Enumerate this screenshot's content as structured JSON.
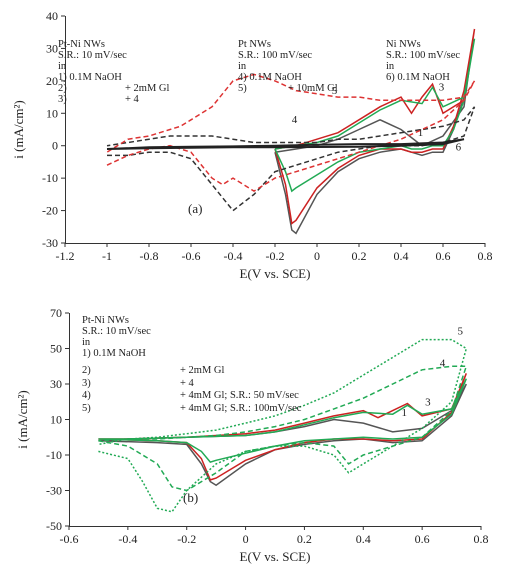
{
  "chart_data": [
    {
      "type": "line",
      "panel_label": "(a)",
      "xlabel": "E(V vs. SCE)",
      "ylabel": "i (mA/cm²)",
      "xlim": [
        -1.2,
        0.8
      ],
      "ylim": [
        -30,
        40
      ],
      "xticks": [
        "-1.2",
        "-1",
        "-0.8",
        "-0.6",
        "-0.4",
        "-0.2",
        "0",
        "0.2",
        "0.4",
        "0.6",
        "0.8"
      ],
      "yticks": [
        "40",
        "30",
        "20",
        "10",
        "0",
        "-10",
        "-20",
        "-30"
      ],
      "grid": false,
      "annotations": {
        "col1": [
          "Pt-Ni NWs",
          "S.R.: 10 mV/sec",
          "in",
          "1) 0.1M NaOH",
          "2)",
          "+ 2mM Gl",
          "3)",
          "+ 4"
        ],
        "col2": [
          "Pt NWs",
          "S.R.: 100 mV/sec",
          "in",
          "4) 0.1M NaOH",
          "5)",
          "+ 10mM Gl"
        ],
        "col3": [
          "Ni NWs",
          "S.R.: 100 mV/sec",
          "in",
          "6) 0.1M NaOH"
        ]
      },
      "series": [
        {
          "label": "1",
          "color": "#555555",
          "dash": "solid",
          "x": [
            -0.2,
            -0.15,
            -0.12,
            -0.1,
            0,
            0.1,
            0.2,
            0.3,
            0.4,
            0.45,
            0.5,
            0.55,
            0.6,
            0.65,
            0.7,
            0.74,
            0.7,
            0.6,
            0.5,
            0.4,
            0.3,
            0.2,
            0.1,
            0.0,
            -0.1,
            -0.15,
            -0.2
          ],
          "y": [
            -2,
            -15,
            -26,
            -27,
            -15,
            -8,
            -4,
            -2,
            -1,
            -2,
            -3,
            -2,
            -2,
            5,
            15,
            31,
            12,
            3,
            0,
            5,
            8,
            5,
            2,
            0,
            -1,
            -1.5,
            -2
          ]
        },
        {
          "label": "2",
          "color": "#cc2222",
          "dash": "solid",
          "x": [
            -0.2,
            -0.15,
            -0.12,
            -0.1,
            0,
            0.1,
            0.2,
            0.3,
            0.4,
            0.45,
            0.5,
            0.55,
            0.6,
            0.65,
            0.7,
            0.75,
            0.7,
            0.6,
            0.55,
            0.5,
            0.45,
            0.4,
            0.3,
            0.2,
            0.1,
            0.0,
            -0.1,
            -0.15,
            -0.2
          ],
          "y": [
            -1,
            -12,
            -24,
            -23,
            -13,
            -7,
            -3,
            -1,
            -1,
            -2,
            -2,
            -1,
            -1,
            6,
            17,
            36,
            14,
            10,
            19,
            15,
            10,
            15,
            12,
            8,
            4,
            2,
            0,
            -0.5,
            -1
          ]
        },
        {
          "label": "3",
          "color": "#22aa55",
          "dash": "solid",
          "x": [
            -0.2,
            -0.15,
            -0.12,
            -0.1,
            0,
            0.1,
            0.2,
            0.3,
            0.4,
            0.45,
            0.5,
            0.55,
            0.6,
            0.65,
            0.7,
            0.75,
            0.7,
            0.6,
            0.55,
            0.5,
            0.4,
            0.3,
            0.2,
            0.1,
            0.0,
            -0.1,
            -0.15,
            -0.2
          ],
          "y": [
            -1,
            -8,
            -14,
            -13,
            -9,
            -5,
            -2,
            -1,
            0,
            -1,
            -1,
            0,
            0,
            5,
            14,
            33,
            15,
            12,
            18,
            13,
            14,
            11,
            7,
            3,
            1,
            0,
            -0.5,
            -1
          ]
        },
        {
          "label": "4",
          "color": "#333333",
          "dash": "dashed",
          "x": [
            -1.0,
            -0.9,
            -0.8,
            -0.7,
            -0.6,
            -0.5,
            -0.4,
            -0.3,
            -0.2,
            -0.1,
            0.0,
            0.1,
            0.2,
            0.3,
            0.4,
            0.5,
            0.6,
            0.7,
            0.75,
            0.7,
            0.6,
            0.5,
            0.4,
            0.3,
            0.2,
            0.1,
            0.0,
            -0.1,
            -0.2,
            -0.3,
            -0.4,
            -0.5,
            -0.6,
            -0.7,
            -0.8,
            -0.9,
            -1.0
          ],
          "y": [
            -3,
            -3,
            -2,
            -2,
            -4,
            -12,
            -20,
            -15,
            -8,
            -6,
            -4,
            -2,
            -1,
            0,
            0,
            0,
            1,
            3,
            12,
            8,
            6,
            5,
            4,
            3,
            2,
            2,
            1,
            1,
            1,
            1,
            2,
            3,
            3,
            3,
            2,
            1,
            0
          ]
        },
        {
          "label": "5",
          "color": "#dd3333",
          "dash": "dashed",
          "x": [
            -1.0,
            -0.9,
            -0.8,
            -0.7,
            -0.6,
            -0.5,
            -0.45,
            -0.4,
            -0.3,
            -0.2,
            -0.1,
            0.0,
            0.1,
            0.2,
            0.3,
            0.4,
            0.5,
            0.6,
            0.7,
            0.75,
            0.7,
            0.6,
            0.5,
            0.45,
            0.4,
            0.3,
            0.2,
            0.1,
            0.0,
            -0.1,
            -0.2,
            -0.3,
            -0.4,
            -0.5,
            -0.6,
            -0.65,
            -0.7,
            -0.8,
            -0.9,
            -1.0
          ],
          "y": [
            -6,
            -3,
            -1,
            0,
            -2,
            -10,
            -12,
            -10,
            -14,
            -10,
            -8,
            -6,
            -4,
            -2,
            0,
            2,
            5,
            8,
            14,
            20,
            15,
            14,
            14,
            14,
            14,
            14,
            15,
            15,
            16,
            17,
            20,
            22,
            20,
            12,
            8,
            6,
            5,
            3,
            2,
            -2
          ]
        },
        {
          "label": "6",
          "color": "#222222",
          "dash": "solid",
          "x": [
            -1.0,
            -0.8,
            -0.6,
            -0.4,
            -0.2,
            0.0,
            0.2,
            0.4,
            0.6,
            0.7,
            0.6,
            0.4,
            0.2,
            0.0,
            -0.2,
            -0.4,
            -0.6,
            -0.8,
            -1.0
          ],
          "y": [
            -1,
            -0.8,
            -0.6,
            -0.5,
            -0.5,
            -0.4,
            -0.3,
            0,
            0.5,
            2,
            1,
            0.5,
            0.5,
            0.3,
            0,
            -0.2,
            -0.3,
            -0.5,
            -1
          ]
        }
      ],
      "curve_labels": [
        {
          "text": "1",
          "x": 0.48,
          "y": 3
        },
        {
          "text": "3",
          "x": 0.58,
          "y": 17
        },
        {
          "text": "5",
          "x": 0.07,
          "y": 16
        },
        {
          "text": "4",
          "x": -0.12,
          "y": 7
        },
        {
          "text": "6",
          "x": 0.66,
          "y": -1.5
        }
      ]
    },
    {
      "type": "line",
      "panel_label": "(b)",
      "xlabel": "E(V vs. SCE)",
      "ylabel": "i (mA/cm²)",
      "xlim": [
        -0.6,
        0.8
      ],
      "ylim": [
        -50,
        70
      ],
      "xticks": [
        "-0.6",
        "-0.4",
        "-0.2",
        "0",
        "0.2",
        "0.4",
        "0.6",
        "0.8"
      ],
      "yticks": [
        "70",
        "50",
        "30",
        "10",
        "-10",
        "-30",
        "-50"
      ],
      "grid": false,
      "annotations": {
        "col1": [
          "Pt-Ni NWs",
          "S.R.: 10 mV/sec",
          "in",
          "1) 0.1M NaOH",
          "2)",
          "+ 2mM Gl",
          "3)",
          "+ 4",
          "4)",
          "+ 4mM Gl; S.R.: 50 mV/sec",
          "5)",
          "+ 4mM Gl; S.R.: 100mV/sec"
        ]
      },
      "series": [
        {
          "label": "1",
          "color": "#555555",
          "dash": "solid",
          "x": [
            -0.5,
            -0.3,
            -0.2,
            -0.15,
            -0.12,
            -0.1,
            0,
            0.1,
            0.2,
            0.3,
            0.4,
            0.5,
            0.6,
            0.7,
            0.75,
            0.7,
            0.6,
            0.5,
            0.4,
            0.3,
            0.2,
            0.1,
            0.0,
            -0.2,
            -0.4,
            -0.5
          ],
          "y": [
            -2,
            -3,
            -4,
            -15,
            -25,
            -27,
            -15,
            -7,
            -4,
            -2,
            -1,
            -3,
            -2,
            12,
            30,
            15,
            5,
            3,
            8,
            10,
            6,
            3,
            1,
            0,
            -1,
            -2
          ]
        },
        {
          "label": "2",
          "color": "#cc2222",
          "dash": "solid",
          "x": [
            -0.5,
            -0.3,
            -0.2,
            -0.15,
            -0.12,
            -0.1,
            0,
            0.1,
            0.2,
            0.3,
            0.4,
            0.5,
            0.6,
            0.7,
            0.75,
            0.7,
            0.6,
            0.55,
            0.5,
            0.45,
            0.4,
            0.3,
            0.2,
            0.1,
            0.0,
            -0.2,
            -0.4,
            -0.5
          ],
          "y": [
            -1,
            -2,
            -3,
            -12,
            -24,
            -23,
            -13,
            -7,
            -3,
            -1,
            -1,
            -2,
            -1,
            14,
            36,
            16,
            12,
            19,
            15,
            11,
            15,
            12,
            8,
            4,
            2,
            0,
            -1,
            -1
          ]
        },
        {
          "label": "3",
          "color": "#22aa55",
          "dash": "solid",
          "x": [
            -0.5,
            -0.3,
            -0.2,
            -0.15,
            -0.12,
            -0.1,
            0,
            0.1,
            0.2,
            0.3,
            0.4,
            0.5,
            0.6,
            0.7,
            0.75,
            0.7,
            0.6,
            0.55,
            0.5,
            0.4,
            0.3,
            0.2,
            0.1,
            0.0,
            -0.2,
            -0.4,
            -0.5
          ],
          "y": [
            -1,
            -2,
            -3,
            -8,
            -14,
            -13,
            -9,
            -5,
            -2,
            -1,
            0,
            -1,
            0,
            13,
            33,
            16,
            13,
            18,
            13,
            14,
            11,
            7,
            3,
            1,
            0,
            -1,
            -1
          ]
        },
        {
          "label": "4",
          "color": "#22aa55",
          "dash": "dashed",
          "x": [
            -0.5,
            -0.4,
            -0.3,
            -0.25,
            -0.2,
            -0.1,
            0.0,
            0.1,
            0.2,
            0.3,
            0.35,
            0.4,
            0.5,
            0.6,
            0.7,
            0.75,
            0.7,
            0.6,
            0.5,
            0.4,
            0.3,
            0.2,
            0.1,
            0.0,
            -0.1,
            -0.2,
            -0.3,
            -0.4,
            -0.5
          ],
          "y": [
            -2,
            -5,
            -15,
            -28,
            -30,
            -20,
            -8,
            -5,
            -3,
            -5,
            -15,
            -10,
            -5,
            0,
            15,
            40,
            40,
            38,
            30,
            22,
            16,
            10,
            6,
            3,
            1,
            0,
            -1,
            -1,
            -2
          ]
        },
        {
          "label": "5",
          "color": "#22aa55",
          "dash": "dotted",
          "x": [
            -0.5,
            -0.4,
            -0.35,
            -0.3,
            -0.25,
            -0.2,
            -0.1,
            0.0,
            0.1,
            0.2,
            0.3,
            0.35,
            0.4,
            0.5,
            0.6,
            0.7,
            0.75,
            0.7,
            0.6,
            0.5,
            0.4,
            0.3,
            0.2,
            0.1,
            0.0,
            -0.1,
            -0.2,
            -0.3,
            -0.4,
            -0.5
          ],
          "y": [
            -8,
            -12,
            -25,
            -40,
            -42,
            -30,
            -15,
            -8,
            -5,
            -5,
            -10,
            -20,
            -15,
            -5,
            5,
            20,
            50,
            55,
            55,
            45,
            35,
            25,
            18,
            12,
            8,
            4,
            2,
            0,
            -1,
            -4
          ]
        }
      ],
      "curve_labels": [
        {
          "text": "1",
          "x": 0.53,
          "y": 12
        },
        {
          "text": "3",
          "x": 0.61,
          "y": 18
        },
        {
          "text": "4",
          "x": 0.66,
          "y": 40
        },
        {
          "text": "5",
          "x": 0.72,
          "y": 58
        }
      ]
    }
  ]
}
